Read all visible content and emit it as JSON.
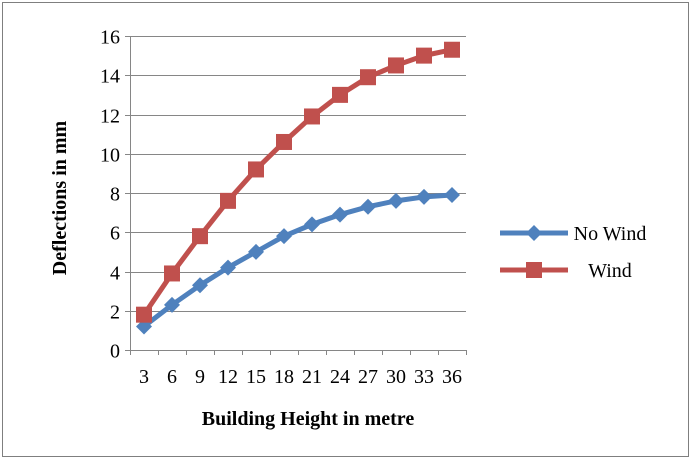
{
  "chart_data": {
    "type": "line",
    "title": "",
    "xlabel": "Building Height in metre",
    "ylabel": "Deflections in mm",
    "categories": [
      "3",
      "6",
      "9",
      "12",
      "15",
      "18",
      "21",
      "24",
      "27",
      "30",
      "33",
      "36"
    ],
    "ylim": [
      0,
      16
    ],
    "yticks": [
      0,
      2,
      4,
      6,
      8,
      10,
      12,
      14,
      16
    ],
    "grid": "horizontal",
    "legend_position": "right",
    "series": [
      {
        "name": "No Wind",
        "color": "#4f81bd",
        "marker": "diamond",
        "values": [
          1.2,
          2.3,
          3.3,
          4.2,
          5.0,
          5.8,
          6.4,
          6.9,
          7.3,
          7.6,
          7.8,
          7.9
        ]
      },
      {
        "name": "Wind",
        "color": "#c0504d",
        "marker": "square",
        "values": [
          1.8,
          3.9,
          5.8,
          7.6,
          9.2,
          10.6,
          11.9,
          13.0,
          13.9,
          14.5,
          15.0,
          15.3
        ]
      }
    ]
  }
}
